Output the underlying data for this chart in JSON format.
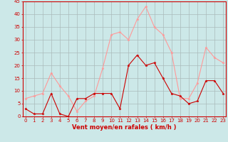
{
  "x": [
    0,
    1,
    2,
    3,
    4,
    5,
    6,
    7,
    8,
    9,
    10,
    11,
    12,
    13,
    14,
    15,
    16,
    17,
    18,
    19,
    20,
    21,
    22,
    23
  ],
  "wind_avg": [
    3,
    1,
    1,
    9,
    1,
    0,
    7,
    7,
    9,
    9,
    9,
    3,
    20,
    24,
    20,
    21,
    15,
    9,
    8,
    5,
    6,
    14,
    14,
    9
  ],
  "wind_gust": [
    7,
    8,
    9,
    17,
    12,
    8,
    2,
    6,
    8,
    19,
    32,
    33,
    30,
    38,
    43,
    35,
    32,
    25,
    7,
    7,
    13,
    27,
    23,
    21
  ],
  "ylim": [
    0,
    45
  ],
  "yticks": [
    0,
    5,
    10,
    15,
    20,
    25,
    30,
    35,
    40,
    45
  ],
  "xlabel": "Vent moyen/en rafales ( km/h )",
  "bg_color": "#cce8e8",
  "grid_color": "#aabbbb",
  "avg_color": "#cc0000",
  "gust_color": "#ff9999",
  "tick_fontsize": 5.0,
  "xlabel_fontsize": 6.0
}
